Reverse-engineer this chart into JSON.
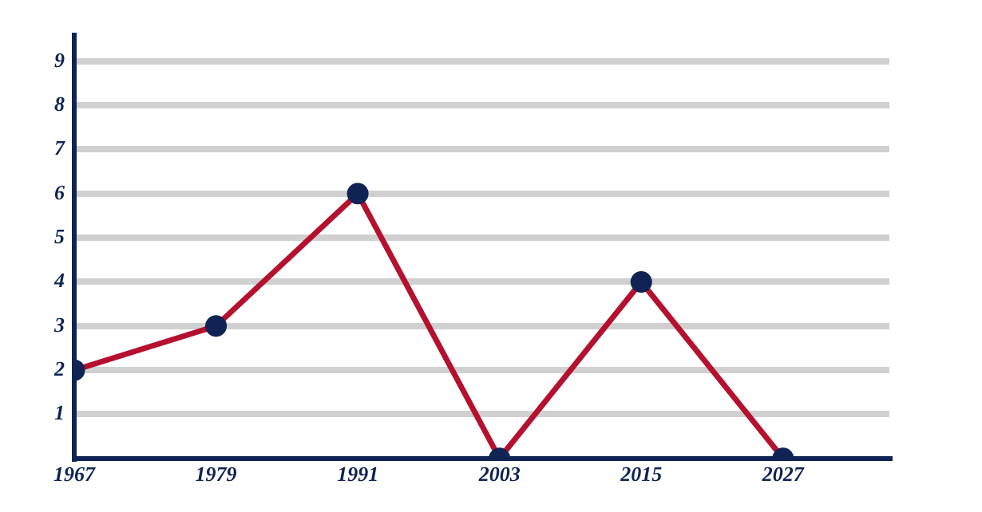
{
  "chart_data": {
    "type": "line",
    "x": [
      1967,
      1979,
      1991,
      2003,
      2015,
      2027
    ],
    "series": [
      {
        "color": "#b5112f",
        "values": [
          2,
          3,
          6,
          0,
          4,
          0
        ]
      }
    ],
    "xlim": [
      1967,
      2036
    ],
    "xticks": [
      1967,
      1979,
      1991,
      2003,
      2015,
      2027
    ],
    "ylim": [
      0,
      9.6
    ],
    "yticks": [
      1,
      2,
      3,
      4,
      5,
      6,
      7,
      8,
      9
    ],
    "grid": "y",
    "legend": false,
    "marker": "circle",
    "line_style": "solid"
  }
}
